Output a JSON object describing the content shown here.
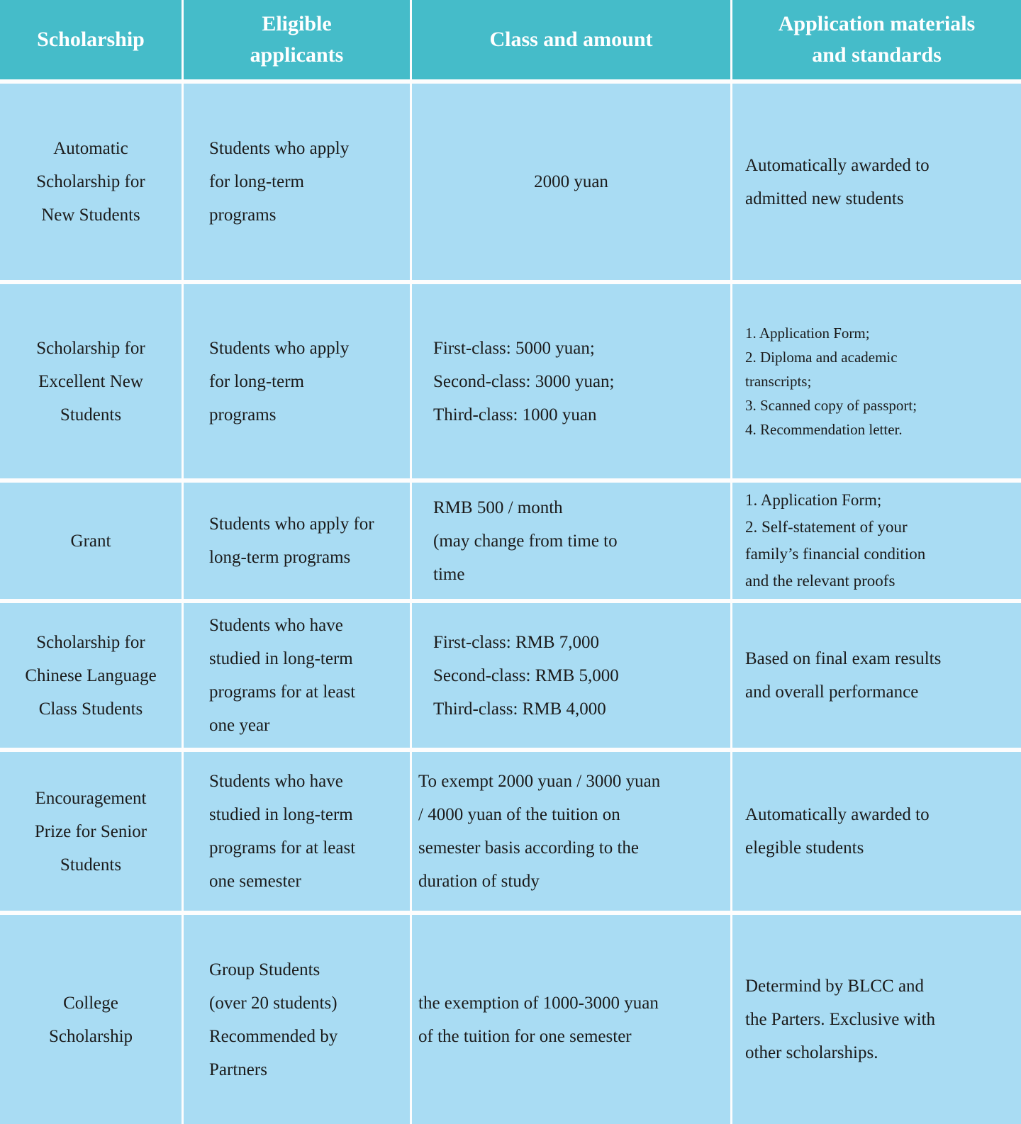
{
  "colors": {
    "header_bg": "#45bcc9",
    "header_text": "#ffffff",
    "cell_bg": "#a9dcf3",
    "body_text": "#1b1b1b",
    "gridline": "#fdfdfd"
  },
  "table": {
    "header": {
      "scholarship": "Scholarship",
      "applicants": "Eligible\napplicants",
      "amount": "Class and amount",
      "materials": "Application materials\nand standards"
    },
    "rows": [
      {
        "scholarship": "Automatic\nScholarship for\nNew Students",
        "applicants": "Students who apply\nfor long-term\nprograms",
        "amount": "2000 yuan",
        "materials": "Automatically awarded to\nadmitted new students"
      },
      {
        "scholarship": "Scholarship for\nExcellent New\nStudents",
        "applicants": "Students who apply\nfor long-term\nprograms",
        "amount": "First-class: 5000 yuan;\nSecond-class: 3000 yuan;\nThird-class: 1000 yuan",
        "materials": "1. Application Form;\n2. Diploma and academic\ntranscripts;\n3. Scanned copy of passport;\n4. Recommendation letter."
      },
      {
        "scholarship": "Grant",
        "applicants": "Students who apply for\nlong-term programs",
        "amount": "RMB 500 / month\n(may change from time to\ntime",
        "materials": "1. Application Form;\n2. Self-statement of your\nfamily’s financial condition\nand the relevant proofs"
      },
      {
        "scholarship": "Scholarship for\nChinese Language\nClass Students",
        "applicants": "Students who have\nstudied in long-term\nprograms for at least\none year",
        "amount": "First-class: RMB 7,000\nSecond-class: RMB 5,000\nThird-class: RMB 4,000",
        "materials": "Based on final exam results\nand overall performance"
      },
      {
        "scholarship": "Encouragement\nPrize for Senior\nStudents",
        "applicants": "Students who have\nstudied in long-term\nprograms for at least\none semester",
        "amount": "To exempt 2000 yuan / 3000 yuan\n/ 4000 yuan of the tuition on\nsemester basis according to the\nduration of study",
        "materials": "Automatically awarded to\nelegible students"
      },
      {
        "scholarship": "College\nScholarship",
        "applicants": "Group Students\n(over 20 students)\nRecommended by\nPartners",
        "amount": "the exemption of 1000-3000 yuan\nof the tuition for one semester",
        "materials": "Determind by BLCC and\nthe Parters. Exclusive with\nother scholarships."
      }
    ]
  }
}
